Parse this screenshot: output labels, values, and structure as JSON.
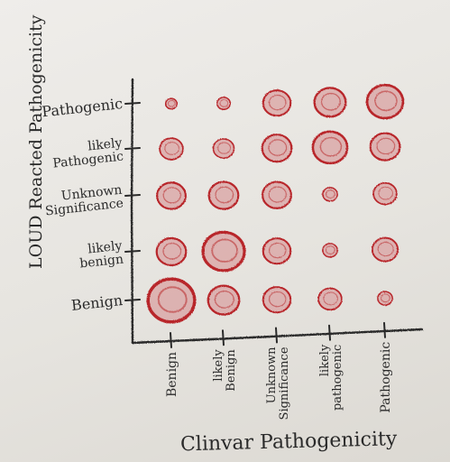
{
  "chart_data": {
    "type": "scatter",
    "subtype": "bubble-grid",
    "drawing": "hand-drawn pencil on paper",
    "xlabel": "Clinvar Pathogenicity",
    "ylabel": "LOUD Reacted Pathogenicity",
    "x_categories": [
      "Benign",
      "likely Benign",
      "Unknown Significance",
      "likely pathogenic",
      "Pathogenic"
    ],
    "y_categories": [
      "Benign",
      "likely benign",
      "Unknown Significance",
      "likely Pathogenic",
      "Pathogenic"
    ],
    "size_scale": "relative bubble size 0-10",
    "points": [
      {
        "x": "Benign",
        "y": "Benign",
        "size": 10
      },
      {
        "x": "likely Benign",
        "y": "Benign",
        "size": 4.5
      },
      {
        "x": "Unknown Significance",
        "y": "Benign",
        "size": 3.5
      },
      {
        "x": "likely pathogenic",
        "y": "Benign",
        "size": 2.5
      },
      {
        "x": "Pathogenic",
        "y": "Benign",
        "size": 1
      },
      {
        "x": "Benign",
        "y": "likely benign",
        "size": 4
      },
      {
        "x": "likely Benign",
        "y": "likely benign",
        "size": 8
      },
      {
        "x": "Unknown Significance",
        "y": "likely benign",
        "size": 3.5
      },
      {
        "x": "likely pathogenic",
        "y": "likely benign",
        "size": 1
      },
      {
        "x": "Pathogenic",
        "y": "likely benign",
        "size": 3
      },
      {
        "x": "Benign",
        "y": "Unknown Significance",
        "size": 3.8
      },
      {
        "x": "likely Benign",
        "y": "Unknown Significance",
        "size": 4
      },
      {
        "x": "Unknown Significance",
        "y": "Unknown Significance",
        "size": 3.8
      },
      {
        "x": "likely pathogenic",
        "y": "Unknown Significance",
        "size": 1
      },
      {
        "x": "Pathogenic",
        "y": "Unknown Significance",
        "size": 2.5
      },
      {
        "x": "Benign",
        "y": "likely Pathogenic",
        "size": 2.5
      },
      {
        "x": "likely Benign",
        "y": "likely Pathogenic",
        "size": 2
      },
      {
        "x": "Unknown Significance",
        "y": "likely Pathogenic",
        "size": 4
      },
      {
        "x": "likely pathogenic",
        "y": "likely Pathogenic",
        "size": 5.5
      },
      {
        "x": "Pathogenic",
        "y": "likely Pathogenic",
        "size": 4
      },
      {
        "x": "Benign",
        "y": "Pathogenic",
        "size": 0.6
      },
      {
        "x": "likely Benign",
        "y": "Pathogenic",
        "size": 0.8
      },
      {
        "x": "Unknown Significance",
        "y": "Pathogenic",
        "size": 3.5
      },
      {
        "x": "likely pathogenic",
        "y": "Pathogenic",
        "size": 4.5
      },
      {
        "x": "Pathogenic",
        "y": "Pathogenic",
        "size": 6
      }
    ],
    "grid": false,
    "colors": {
      "bubble_fill": "#d9a2a2",
      "bubble_stroke": "#b8262c",
      "axis": "#2a2a2a"
    }
  }
}
